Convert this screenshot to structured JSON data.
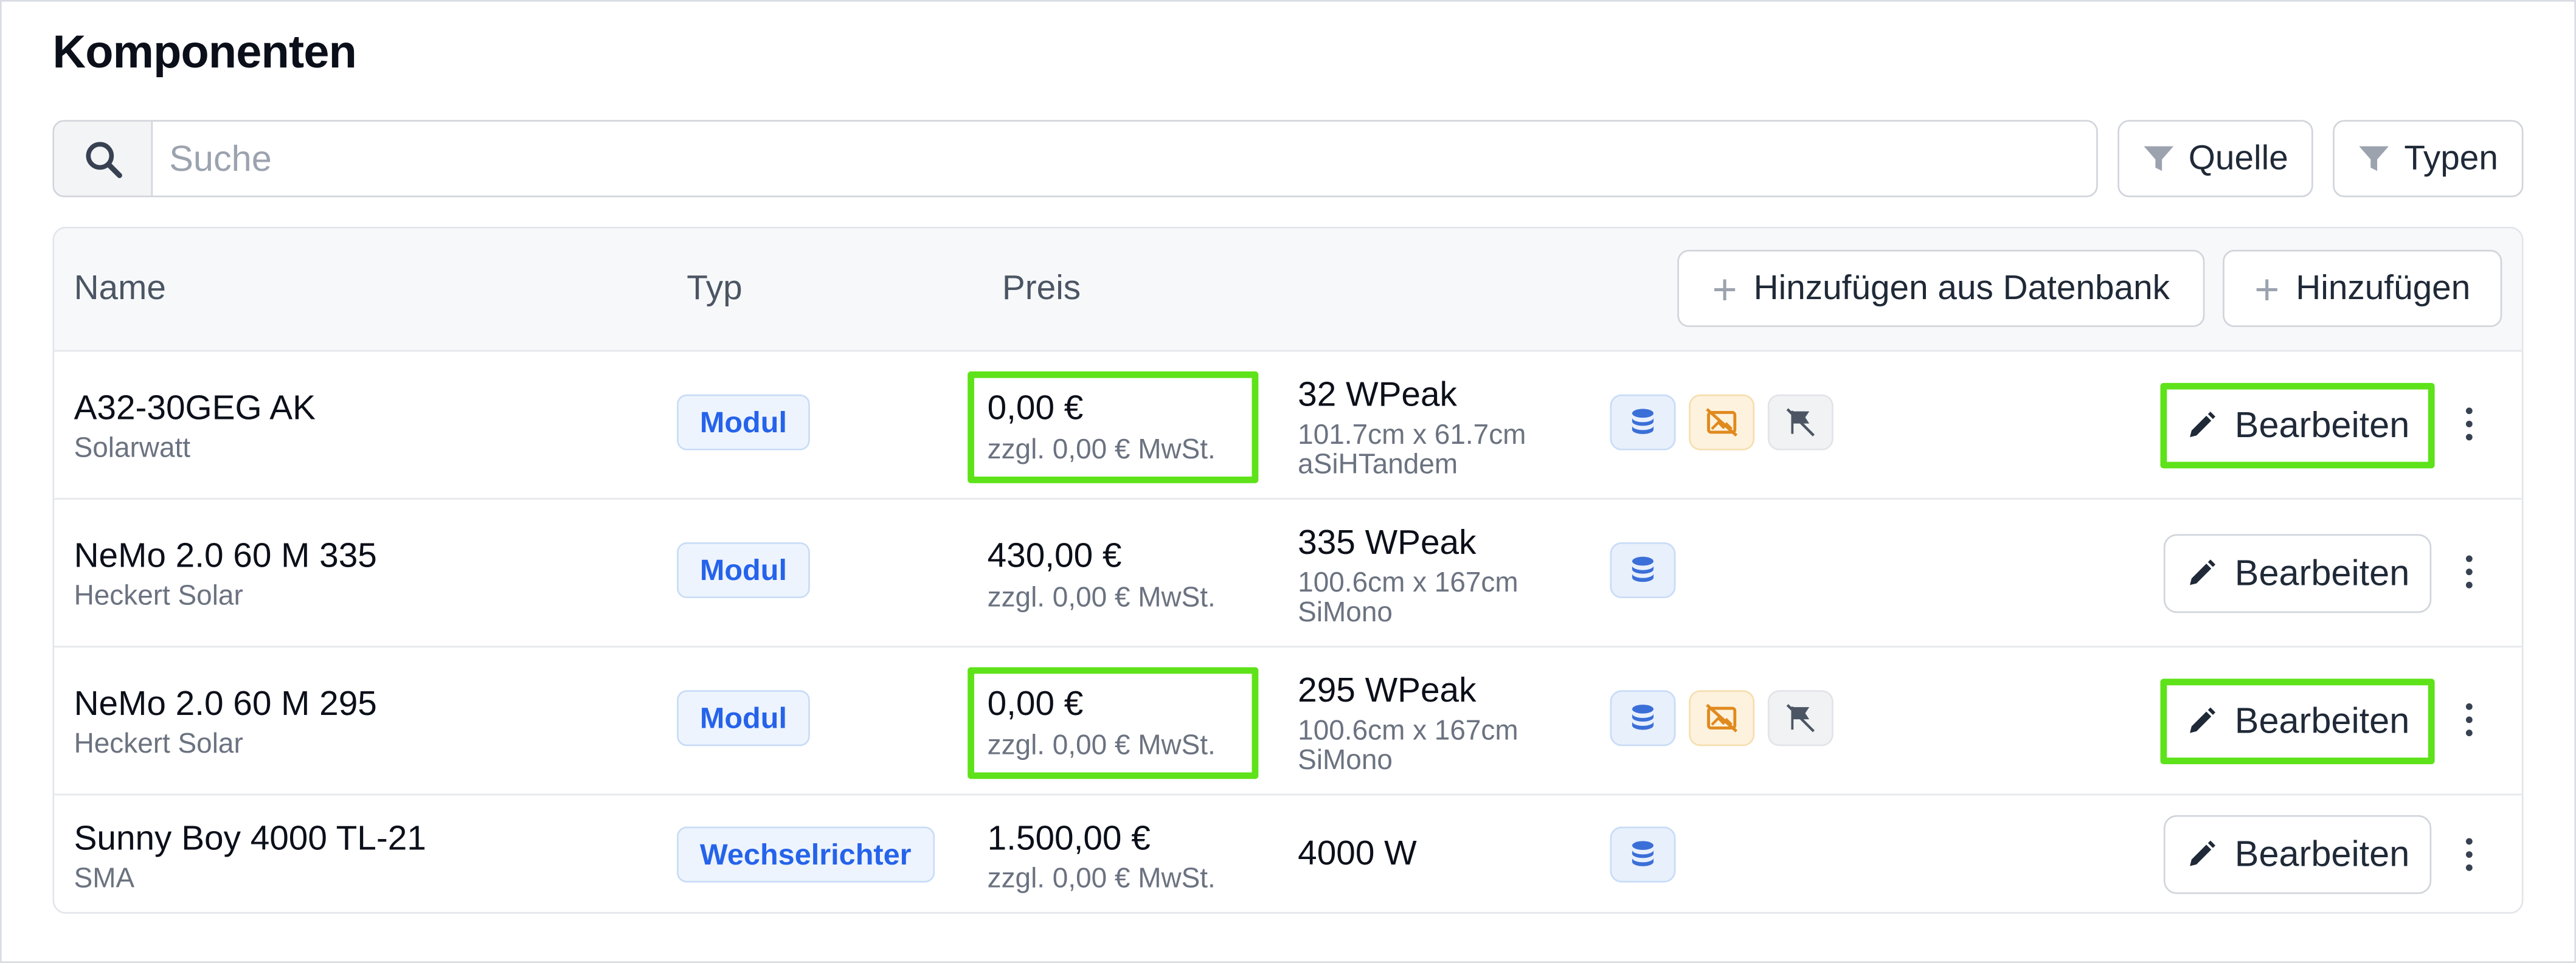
{
  "page": {
    "title": "Komponenten"
  },
  "search": {
    "placeholder": "Suche",
    "value": ""
  },
  "filters": {
    "source_label": "Quelle",
    "types_label": "Typen"
  },
  "table": {
    "columns": {
      "name": "Name",
      "type": "Typ",
      "price": "Preis"
    },
    "add_from_db_label": "Hinzufügen aus Datenbank",
    "add_label": "Hinzufügen",
    "edit_label": "Bearbeiten",
    "rows": [
      {
        "name": "A32-30GEG AK",
        "manufacturer": "Solarwatt",
        "type": "Modul",
        "price": "0,00 €",
        "tax": "zzgl. 0,00 € MwSt.",
        "power": "32 WPeak",
        "dimensions": "101.7cm x 61.7cm",
        "cell_type": "aSiHTandem",
        "icons": [
          "database-icon",
          "image-off-icon",
          "flag-off-icon"
        ],
        "highlighted": true
      },
      {
        "name": "NeMo 2.0 60 M 335",
        "manufacturer": "Heckert Solar",
        "type": "Modul",
        "price": "430,00 €",
        "tax": "zzgl. 0,00 € MwSt.",
        "power": "335 WPeak",
        "dimensions": "100.6cm x 167cm",
        "cell_type": "SiMono",
        "icons": [
          "database-icon"
        ],
        "highlighted": false
      },
      {
        "name": "NeMo 2.0 60 M 295",
        "manufacturer": "Heckert Solar",
        "type": "Modul",
        "price": "0,00 €",
        "tax": "zzgl. 0,00 € MwSt.",
        "power": "295 WPeak",
        "dimensions": "100.6cm x 167cm",
        "cell_type": "SiMono",
        "icons": [
          "database-icon",
          "image-off-icon",
          "flag-off-icon"
        ],
        "highlighted": true
      },
      {
        "name": "Sunny Boy 4000 TL-21",
        "manufacturer": "SMA",
        "type": "Wechselrichter",
        "price": "1.500,00 €",
        "tax": "zzgl. 0,00 € MwSt.",
        "power": "4000 W",
        "icons": [
          "database-icon"
        ],
        "highlighted": false
      }
    ]
  },
  "colors": {
    "highlight": "#5ee219",
    "badge_text": "#2563eb",
    "badge_bg": "#eef4fd",
    "warning_bg": "#fdf2dd",
    "warning_icon": "#e08a1e"
  }
}
